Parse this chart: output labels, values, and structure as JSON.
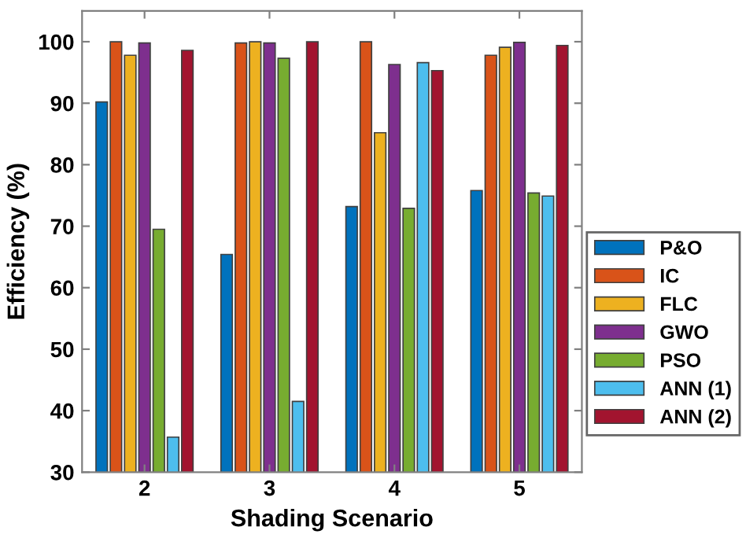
{
  "chart_data": {
    "type": "bar",
    "xlabel": "Shading Scenario",
    "ylabel": "Efficiency (%)",
    "categories": [
      "2",
      "3",
      "4",
      "5"
    ],
    "series": [
      {
        "name": "P&O",
        "color": "#0072bd",
        "values": [
          90.2,
          65.4,
          73.2,
          75.8
        ]
      },
      {
        "name": "IC",
        "color": "#d95319",
        "values": [
          100,
          99.8,
          100,
          97.8
        ]
      },
      {
        "name": "FLC",
        "color": "#edb120",
        "values": [
          97.8,
          100,
          85.2,
          99.1
        ]
      },
      {
        "name": "GWO",
        "color": "#7e2f8e",
        "values": [
          99.8,
          99.8,
          96.3,
          99.9
        ]
      },
      {
        "name": "PSO",
        "color": "#77ac30",
        "values": [
          69.5,
          97.3,
          72.9,
          75.4
        ]
      },
      {
        "name": "ANN (1)",
        "color": "#4dbeee",
        "values": [
          35.7,
          41.5,
          96.6,
          74.9
        ]
      },
      {
        "name": "ANN (2)",
        "color": "#a2142f",
        "values": [
          98.6,
          100,
          95.3,
          99.4
        ]
      }
    ],
    "ylim": [
      30,
      105
    ],
    "yticks": [
      30,
      40,
      50,
      60,
      70,
      80,
      90,
      100
    ],
    "grid": false,
    "legend": "right"
  }
}
